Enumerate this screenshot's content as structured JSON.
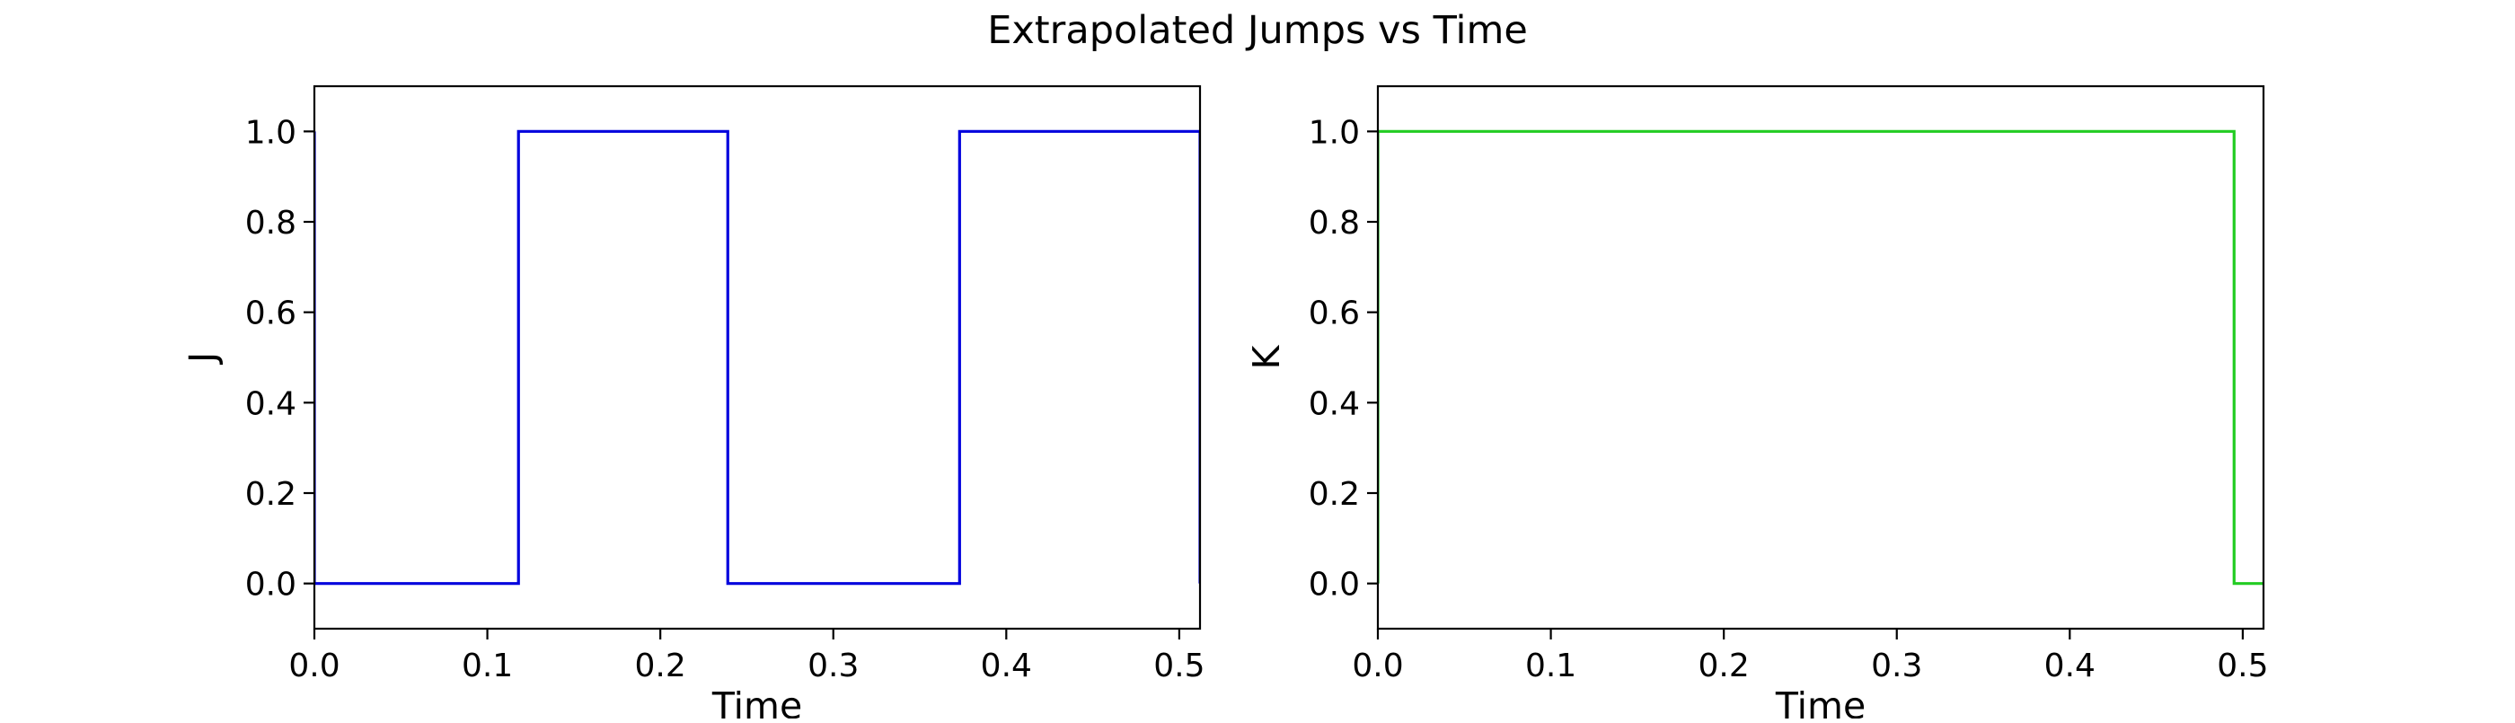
{
  "title": "Extrapolated Jumps vs Time",
  "colors": {
    "series_j": "#0000dd",
    "series_k": "#22cc22",
    "axes": "#000000",
    "background": "#ffffff"
  },
  "chart_data": [
    {
      "type": "line",
      "step": "post",
      "xlabel": "Time",
      "ylabel": "J",
      "xlim": [
        0.0,
        0.512
      ],
      "ylim": [
        -0.1,
        1.1
      ],
      "xticks": [
        0.0,
        0.1,
        0.2,
        0.3,
        0.4,
        0.5
      ],
      "xtick_labels": [
        "0.0",
        "0.1",
        "0.2",
        "0.3",
        "0.4",
        "0.5"
      ],
      "yticks": [
        0.0,
        0.2,
        0.4,
        0.6,
        0.8,
        1.0
      ],
      "ytick_labels": [
        "0.0",
        "0.2",
        "0.4",
        "0.6",
        "0.8",
        "1.0"
      ],
      "grid": false,
      "series": [
        {
          "color": "#0000dd",
          "x": [
            0.0,
            0.0,
            0.118,
            0.118,
            0.239,
            0.239,
            0.373,
            0.373,
            0.512,
            0.512
          ],
          "y": [
            1.0,
            0.0,
            0.0,
            1.0,
            1.0,
            0.0,
            0.0,
            1.0,
            1.0,
            0.0
          ]
        }
      ]
    },
    {
      "type": "line",
      "step": "post",
      "xlabel": "Time",
      "ylabel": "K",
      "xlim": [
        0.0,
        0.512
      ],
      "ylim": [
        -0.1,
        1.1
      ],
      "xticks": [
        0.0,
        0.1,
        0.2,
        0.3,
        0.4,
        0.5
      ],
      "xtick_labels": [
        "0.0",
        "0.1",
        "0.2",
        "0.3",
        "0.4",
        "0.5"
      ],
      "yticks": [
        0.0,
        0.2,
        0.4,
        0.6,
        0.8,
        1.0
      ],
      "ytick_labels": [
        "0.0",
        "0.2",
        "0.4",
        "0.6",
        "0.8",
        "1.0"
      ],
      "grid": false,
      "series": [
        {
          "color": "#22cc22",
          "x": [
            0.0,
            0.0,
            0.495,
            0.495,
            0.512
          ],
          "y": [
            0.0,
            1.0,
            1.0,
            0.0,
            0.0
          ]
        }
      ]
    }
  ]
}
